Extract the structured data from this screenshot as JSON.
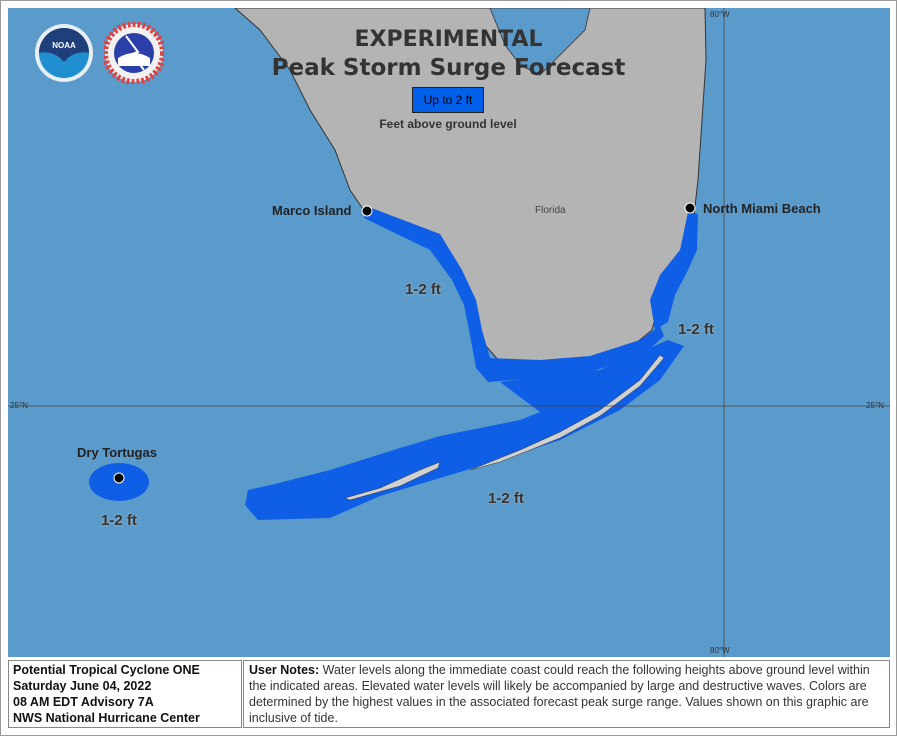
{
  "title": {
    "line1": "EXPERIMENTAL",
    "line2": "Peak Storm Surge Forecast"
  },
  "legend": {
    "category": "Up to 2 ft",
    "color": "#0060ea",
    "subtitle": "Feet above ground level"
  },
  "logos": {
    "noaa": "NOAA",
    "nws": "NATIONAL WEATHER SERVICE"
  },
  "map": {
    "water_color": "#5b9bcc",
    "land_color": "#b4b4b4",
    "surge_color": "#0f5ee6",
    "places": [
      {
        "name": "Marco Island"
      },
      {
        "name": "North Miami Beach"
      },
      {
        "name": "Dry Tortugas"
      }
    ],
    "region_label": "Florida",
    "surge_labels": [
      "1-2 ft",
      "1-2 ft",
      "1-2 ft",
      "1-2 ft"
    ],
    "graticule": {
      "lat_label": "25°N",
      "lon_label": "80°W"
    }
  },
  "info": {
    "storm": "Potential Tropical Cyclone ONE",
    "date": "Saturday June 04, 2022",
    "advisory": "08 AM EDT Advisory 7A",
    "agency": "NWS National Hurricane Center"
  },
  "notes": {
    "label": "User Notes:",
    "text": " Water levels along the immediate coast could reach the following heights above ground level within the indicated areas. Elevated water levels will likely be accompanied by large and destructive waves. Colors are determined by the highest values in the associated forecast peak surge range. Values shown on this graphic are inclusive of tide."
  }
}
